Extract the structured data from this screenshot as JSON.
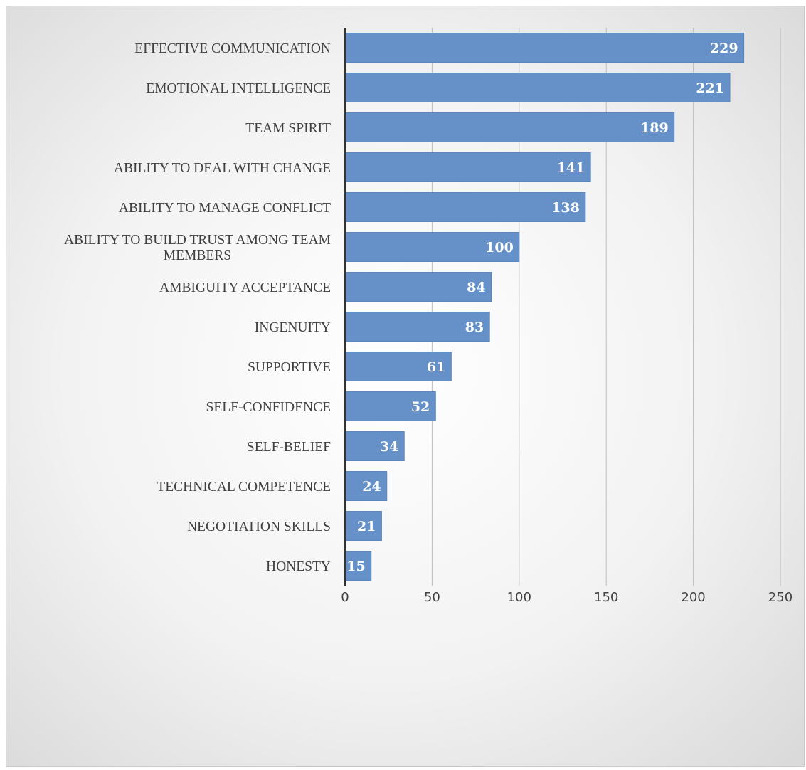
{
  "chart_data": {
    "type": "bar",
    "orientation": "horizontal",
    "categories": [
      "EFFECTIVE COMMUNICATION",
      "EMOTIONAL INTELLIGENCE",
      "TEAM SPIRIT",
      "ABILITY TO DEAL WITH CHANGE",
      "ABILITY TO MANAGE CONFLICT",
      "ABILITY TO BUILD TRUST AMONG TEAM MEMBERS",
      "AMBIGUITY ACCEPTANCE",
      "INGENUITY",
      "SUPPORTIVE",
      "SELF-CONFIDENCE",
      "SELF-BELIEF",
      "TECHNICAL COMPETENCE",
      "NEGOTIATION SKILLS",
      "HONESTY"
    ],
    "category_label_lines": [
      [
        "EFFECTIVE COMMUNICATION"
      ],
      [
        "EMOTIONAL INTELLIGENCE"
      ],
      [
        "TEAM SPIRIT"
      ],
      [
        "ABILITY TO DEAL WITH CHANGE"
      ],
      [
        "ABILITY TO MANAGE CONFLICT"
      ],
      [
        "ABILITY TO BUILD TRUST AMONG TEAM",
        "MEMBERS"
      ],
      [
        "AMBIGUITY ACCEPTANCE"
      ],
      [
        "INGENUITY"
      ],
      [
        "SUPPORTIVE"
      ],
      [
        "SELF-CONFIDENCE"
      ],
      [
        "SELF-BELIEF"
      ],
      [
        "TECHNICAL COMPETENCE"
      ],
      [
        "NEGOTIATION SKILLS"
      ],
      [
        "HONESTY"
      ]
    ],
    "values": [
      229,
      221,
      189,
      141,
      138,
      100,
      84,
      83,
      61,
      52,
      34,
      24,
      21,
      15
    ],
    "xlim": [
      0,
      250
    ],
    "x_ticks": [
      0,
      50,
      100,
      150,
      200,
      250
    ],
    "title": "",
    "xlabel": "",
    "ylabel": "",
    "grid": "vertical",
    "legend": "none",
    "data_labels": "inside-end",
    "colors": {
      "bar": "#6591c8",
      "bar_border": "#5a86bf",
      "data_label": "#ffffff",
      "axis_text": "#404040",
      "gridline": "#bdbdbd",
      "axis_line": "#333333"
    }
  }
}
